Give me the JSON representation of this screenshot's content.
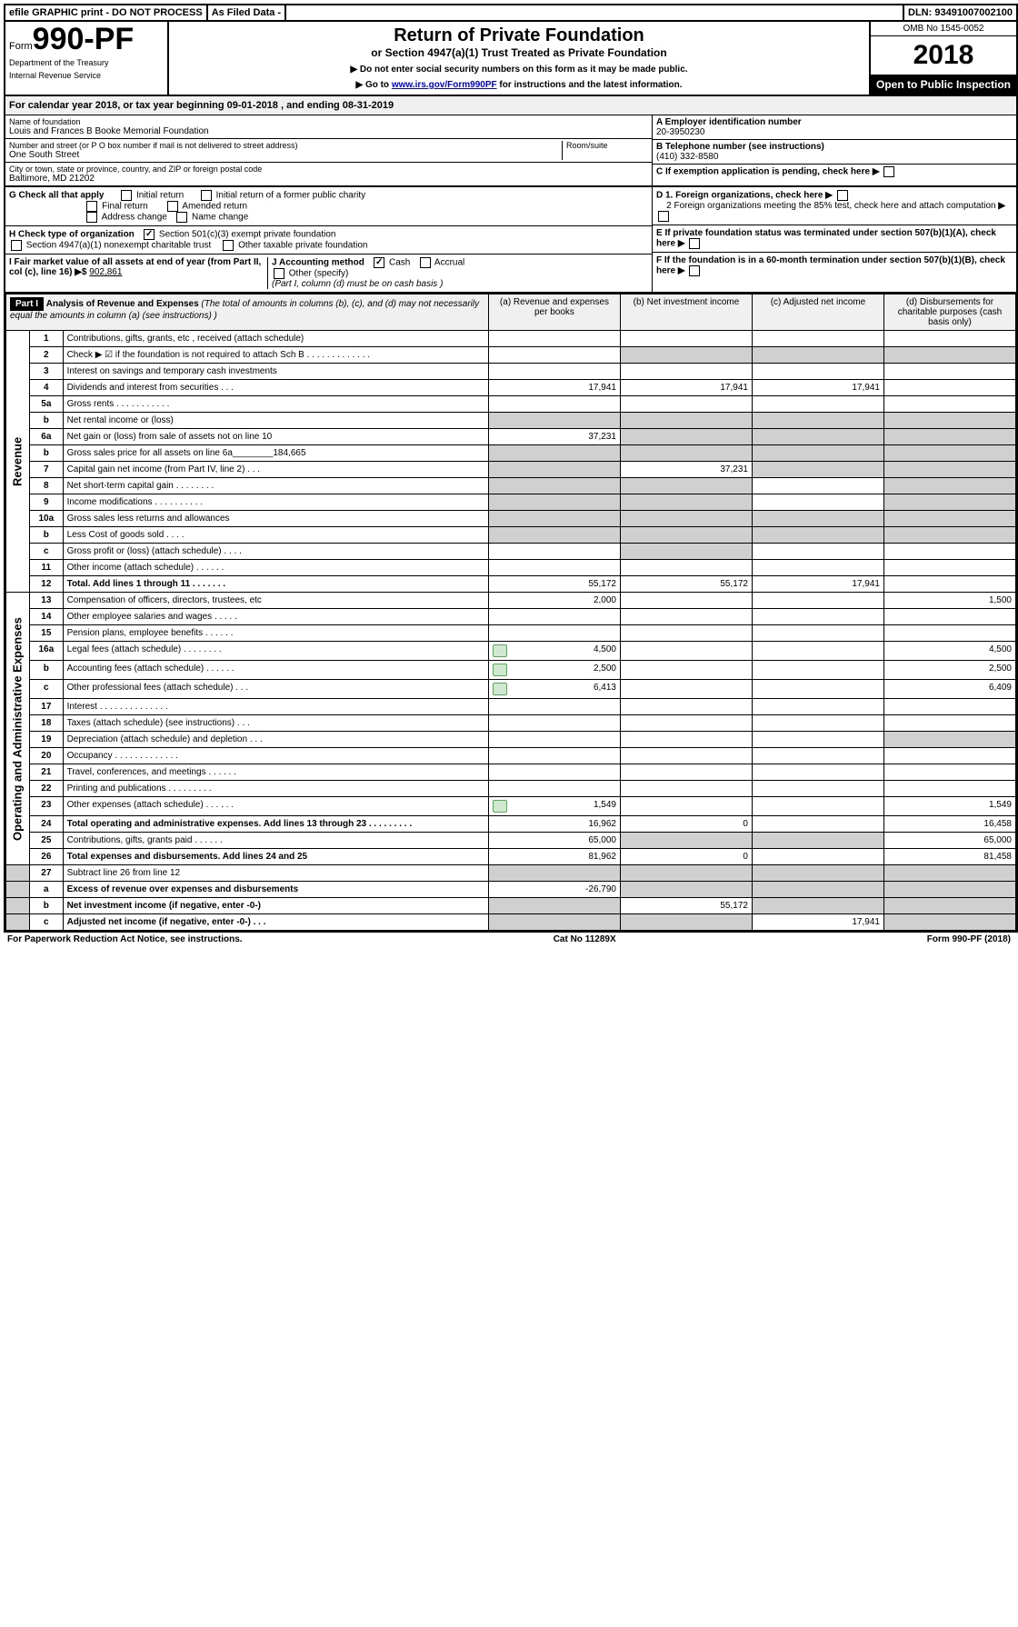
{
  "top": {
    "efile": "efile GRAPHIC print - DO NOT PROCESS",
    "filed": "As Filed Data -",
    "dln": "DLN: 93491007002100"
  },
  "header": {
    "form_prefix": "Form",
    "form_number": "990-PF",
    "dept1": "Department of the Treasury",
    "dept2": "Internal Revenue Service",
    "title": "Return of Private Foundation",
    "subtitle": "or Section 4947(a)(1) Trust Treated as Private Foundation",
    "inst1": "▶ Do not enter social security numbers on this form as it may be made public.",
    "inst2_pre": "▶ Go to ",
    "inst2_link": "www.irs.gov/Form990PF",
    "inst2_post": " for instructions and the latest information.",
    "omb": "OMB No 1545-0052",
    "year": "2018",
    "open": "Open to Public Inspection"
  },
  "calyear": "For calendar year 2018, or tax year beginning 09-01-2018               , and ending 08-31-2019",
  "info": {
    "name_label": "Name of foundation",
    "name": "Louis and Frances B Booke Memorial Foundation",
    "street_label": "Number and street (or P O  box number if mail is not delivered to street address)",
    "street": "One South Street",
    "room_label": "Room/suite",
    "city_label": "City or town, state or province, country, and ZIP or foreign postal code",
    "city": "Baltimore, MD  21202",
    "ein_label": "A Employer identification number",
    "ein": "20-3950230",
    "phone_label": "B Telephone number (see instructions)",
    "phone": "(410) 332-8580",
    "c_label": "C If exemption application is pending, check here"
  },
  "checks": {
    "g": "G Check all that apply",
    "g1": "Initial return",
    "g2": "Initial return of a former public charity",
    "g3": "Final return",
    "g4": "Amended return",
    "g5": "Address change",
    "g6": "Name change",
    "h": "H Check type of organization",
    "h1": "Section 501(c)(3) exempt private foundation",
    "h2": "Section 4947(a)(1) nonexempt charitable trust",
    "h3": "Other taxable private foundation",
    "i": "I Fair market value of all assets at end of year (from Part II, col (c), line 16) ▶$ ",
    "i_val": "902,861",
    "j": "J Accounting method",
    "j1": "Cash",
    "j2": "Accrual",
    "j3": "Other (specify)",
    "j_note": "(Part I, column (d) must be on cash basis )",
    "d1": "D 1. Foreign organizations, check here",
    "d2": "2 Foreign organizations meeting the 85% test, check here and attach computation",
    "e": "E  If private foundation status was terminated under section 507(b)(1)(A), check here",
    "f": "F  If the foundation is in a 60-month termination under section 507(b)(1)(B), check here"
  },
  "part1": {
    "label": "Part I",
    "title": "Analysis of Revenue and Expenses",
    "note": " (The total of amounts in columns (b), (c), and (d) may not necessarily equal the amounts in column (a) (see instructions) )",
    "col_a": "(a)   Revenue and expenses per books",
    "col_b": "(b)  Net investment income",
    "col_c": "(c)  Adjusted net income",
    "col_d": "(d)  Disbursements for charitable purposes (cash basis only)"
  },
  "sections": {
    "revenue": "Revenue",
    "expenses": "Operating and Administrative Expenses"
  },
  "rows": [
    {
      "n": "1",
      "d": "Contributions, gifts, grants, etc , received (attach schedule)",
      "a": "",
      "b": "",
      "c": "",
      "dd": "",
      "sec": "rev"
    },
    {
      "n": "2",
      "d": "Check ▶ ☑ if the foundation is not required to attach Sch B     .   .   .   .   .   .   .   .   .   .   .   .   .",
      "a": "",
      "b": "",
      "c": "",
      "dd": "",
      "sec": "rev",
      "shade_bcd": true
    },
    {
      "n": "3",
      "d": "Interest on savings and temporary cash investments",
      "a": "",
      "b": "",
      "c": "",
      "dd": "",
      "sec": "rev"
    },
    {
      "n": "4",
      "d": "Dividends and interest from securities      .   .   .",
      "a": "17,941",
      "b": "17,941",
      "c": "17,941",
      "dd": "",
      "sec": "rev"
    },
    {
      "n": "5a",
      "d": "Gross rents         .   .   .   .   .   .   .   .   .   .   .",
      "a": "",
      "b": "",
      "c": "",
      "dd": "",
      "sec": "rev"
    },
    {
      "n": "b",
      "d": "Net rental income or (loss)  ",
      "a": "",
      "b": "",
      "c": "",
      "dd": "",
      "sec": "rev",
      "shade_all": true
    },
    {
      "n": "6a",
      "d": "Net gain or (loss) from sale of assets not on line 10",
      "a": "37,231",
      "b": "",
      "c": "",
      "dd": "",
      "sec": "rev",
      "shade_bcd": true
    },
    {
      "n": "b",
      "d": "Gross sales price for all assets on line 6a________184,665",
      "a": "",
      "b": "",
      "c": "",
      "dd": "",
      "sec": "rev",
      "shade_all": true
    },
    {
      "n": "7",
      "d": "Capital gain net income (from Part IV, line 2)   .   .   .",
      "a": "",
      "b": "37,231",
      "c": "",
      "dd": "",
      "sec": "rev",
      "shade_a": true,
      "shade_cd": true
    },
    {
      "n": "8",
      "d": "Net short-term capital gain  .   .   .   .   .   .   .   .",
      "a": "",
      "b": "",
      "c": "",
      "dd": "",
      "sec": "rev",
      "shade_ab": true,
      "shade_d": true
    },
    {
      "n": "9",
      "d": "Income modifications .   .   .   .   .   .   .   .   .   .",
      "a": "",
      "b": "",
      "c": "",
      "dd": "",
      "sec": "rev",
      "shade_ab": true,
      "shade_d": true
    },
    {
      "n": "10a",
      "d": "Gross sales less returns and allowances ",
      "a": "",
      "b": "",
      "c": "",
      "dd": "",
      "sec": "rev",
      "shade_all": true
    },
    {
      "n": "b",
      "d": "Less  Cost of goods sold     .   .   .   .",
      "a": "",
      "b": "",
      "c": "",
      "dd": "",
      "sec": "rev",
      "shade_all": true
    },
    {
      "n": "c",
      "d": "Gross profit or (loss) (attach schedule)      .   .   .   .",
      "a": "",
      "b": "",
      "c": "",
      "dd": "",
      "sec": "rev",
      "shade_b": true
    },
    {
      "n": "11",
      "d": "Other income (attach schedule)     .   .   .   .   .   .",
      "a": "",
      "b": "",
      "c": "",
      "dd": "",
      "sec": "rev"
    },
    {
      "n": "12",
      "d": "Total. Add lines 1 through 11   .   .   .   .   .   .   .",
      "a": "55,172",
      "b": "55,172",
      "c": "17,941",
      "dd": "",
      "sec": "rev",
      "bold": true
    },
    {
      "n": "13",
      "d": "Compensation of officers, directors, trustees, etc",
      "a": "2,000",
      "b": "",
      "c": "",
      "dd": "1,500",
      "sec": "exp"
    },
    {
      "n": "14",
      "d": "Other employee salaries and wages     .   .   .   .   .",
      "a": "",
      "b": "",
      "c": "",
      "dd": "",
      "sec": "exp"
    },
    {
      "n": "15",
      "d": "Pension plans, employee benefits  .   .   .   .   .   .",
      "a": "",
      "b": "",
      "c": "",
      "dd": "",
      "sec": "exp"
    },
    {
      "n": "16a",
      "d": "Legal fees (attach schedule) .   .   .   .   .   .   .   .",
      "a": "4,500",
      "b": "",
      "c": "",
      "dd": "4,500",
      "sec": "exp",
      "icon": true
    },
    {
      "n": "b",
      "d": "Accounting fees (attach schedule)  .   .   .   .   .   .",
      "a": "2,500",
      "b": "",
      "c": "",
      "dd": "2,500",
      "sec": "exp",
      "icon": true
    },
    {
      "n": "c",
      "d": "Other professional fees (attach schedule)    .   .   .",
      "a": "6,413",
      "b": "",
      "c": "",
      "dd": "6,409",
      "sec": "exp",
      "icon": true
    },
    {
      "n": "17",
      "d": "Interest  .   .   .   .   .   .   .   .   .   .   .   .   .   .",
      "a": "",
      "b": "",
      "c": "",
      "dd": "",
      "sec": "exp"
    },
    {
      "n": "18",
      "d": "Taxes (attach schedule) (see instructions)     .   .   .",
      "a": "",
      "b": "",
      "c": "",
      "dd": "",
      "sec": "exp"
    },
    {
      "n": "19",
      "d": "Depreciation (attach schedule) and depletion    .   .   .",
      "a": "",
      "b": "",
      "c": "",
      "dd": "",
      "sec": "exp",
      "shade_d": true
    },
    {
      "n": "20",
      "d": "Occupancy   .   .   .   .   .   .   .   .   .   .   .   .   .",
      "a": "",
      "b": "",
      "c": "",
      "dd": "",
      "sec": "exp"
    },
    {
      "n": "21",
      "d": "Travel, conferences, and meetings .   .   .   .   .   .",
      "a": "",
      "b": "",
      "c": "",
      "dd": "",
      "sec": "exp"
    },
    {
      "n": "22",
      "d": "Printing and publications .   .   .   .   .   .   .   .   .",
      "a": "",
      "b": "",
      "c": "",
      "dd": "",
      "sec": "exp"
    },
    {
      "n": "23",
      "d": "Other expenses (attach schedule) .   .   .   .   .   .",
      "a": "1,549",
      "b": "",
      "c": "",
      "dd": "1,549",
      "sec": "exp",
      "icon": true
    },
    {
      "n": "24",
      "d": "Total operating and administrative expenses. Add lines 13 through 23   .   .   .   .   .   .   .   .   .",
      "a": "16,962",
      "b": "0",
      "c": "",
      "dd": "16,458",
      "sec": "exp",
      "bold": true
    },
    {
      "n": "25",
      "d": "Contributions, gifts, grants paid    .   .   .   .   .   .",
      "a": "65,000",
      "b": "",
      "c": "",
      "dd": "65,000",
      "sec": "exp",
      "shade_bc": true
    },
    {
      "n": "26",
      "d": "Total expenses and disbursements. Add lines 24 and 25",
      "a": "81,962",
      "b": "0",
      "c": "",
      "dd": "81,458",
      "sec": "exp",
      "bold": true
    },
    {
      "n": "27",
      "d": "Subtract line 26 from line 12",
      "a": "",
      "b": "",
      "c": "",
      "dd": "",
      "sec": "none",
      "shade_all": true
    },
    {
      "n": "a",
      "d": "Excess of revenue over expenses and disbursements",
      "a": "-26,790",
      "b": "",
      "c": "",
      "dd": "",
      "sec": "none",
      "bold": true,
      "shade_bcd": true
    },
    {
      "n": "b",
      "d": "Net investment income (if negative, enter -0-)",
      "a": "",
      "b": "55,172",
      "c": "",
      "dd": "",
      "sec": "none",
      "bold": true,
      "shade_a": true,
      "shade_cd": true
    },
    {
      "n": "c",
      "d": "Adjusted net income (if negative, enter -0-)   .   .   .",
      "a": "",
      "b": "",
      "c": "17,941",
      "dd": "",
      "sec": "none",
      "bold": true,
      "shade_ab": true,
      "shade_d": true
    }
  ],
  "footer": {
    "left": "For Paperwork Reduction Act Notice, see instructions.",
    "center": "Cat No 11289X",
    "right": "Form 990-PF (2018)"
  }
}
